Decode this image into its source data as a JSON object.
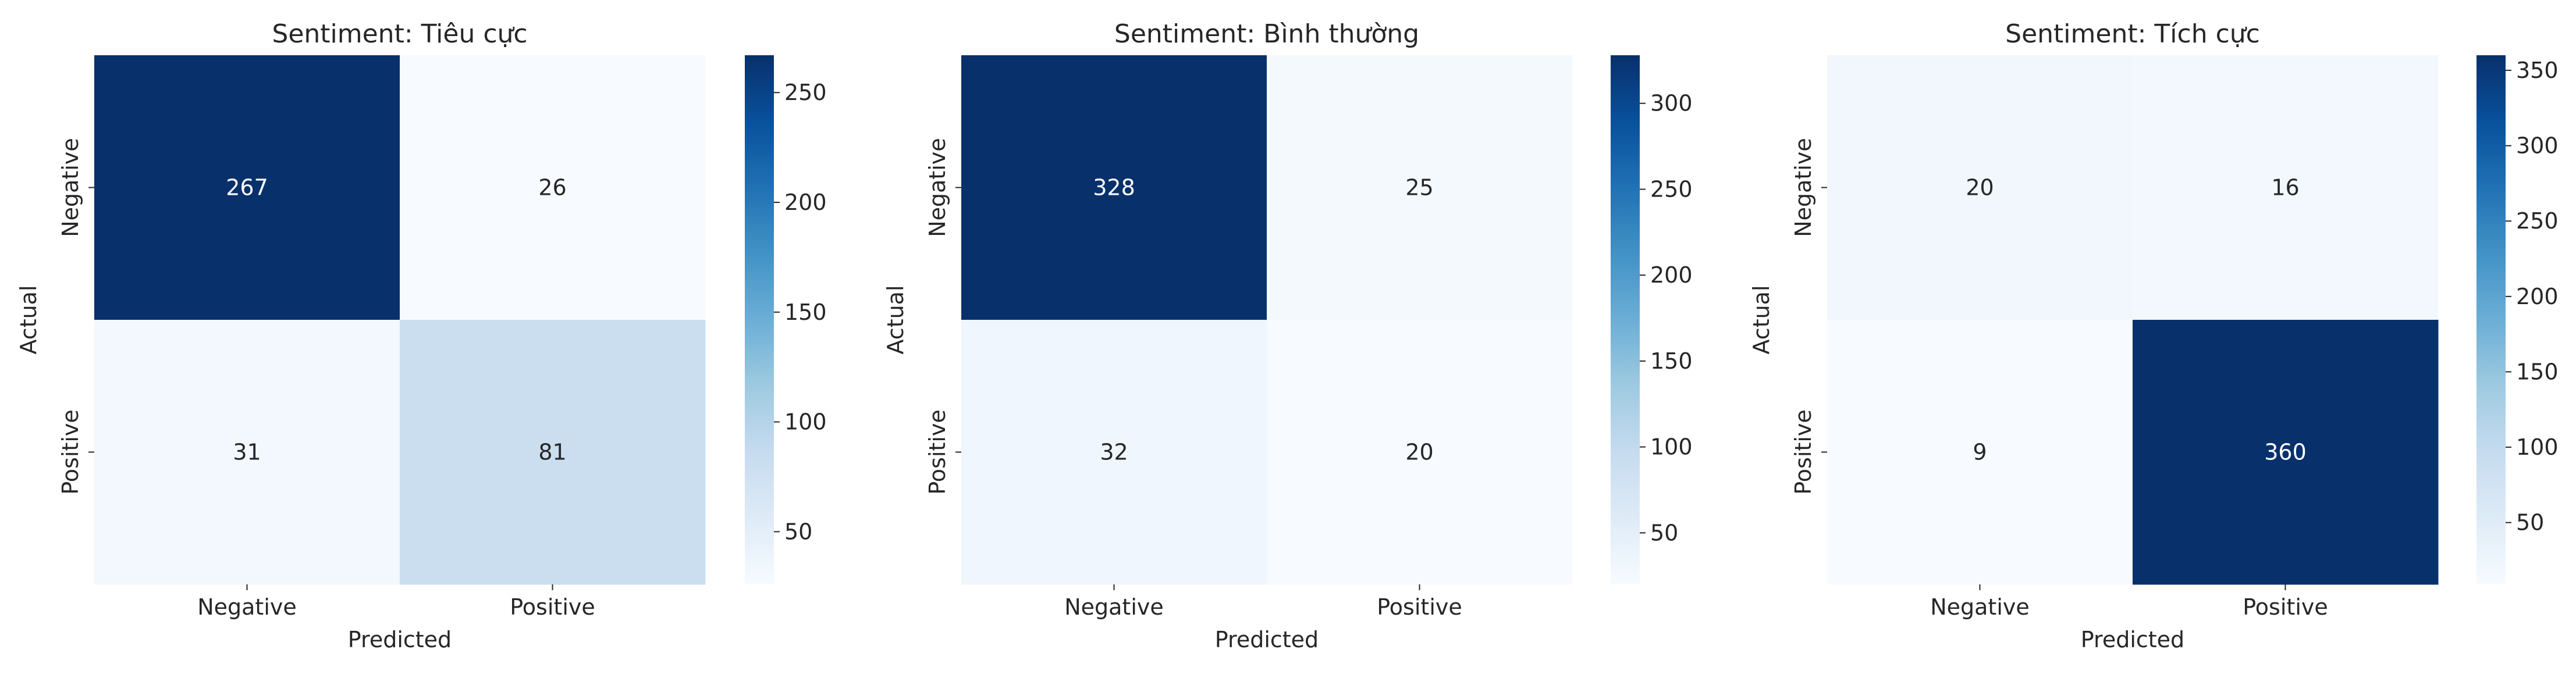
{
  "chart_data": [
    {
      "type": "heatmap",
      "title": "Sentiment: Tiêu cực",
      "xlabel": "Predicted",
      "ylabel": "Actual",
      "x_categories": [
        "Negative",
        "Positive"
      ],
      "y_categories": [
        "Negative",
        "Positive"
      ],
      "values": [
        [
          267,
          26
        ],
        [
          31,
          81
        ]
      ],
      "colormap": "Blues",
      "colorbar": {
        "range": [
          26,
          267
        ],
        "ticks": [
          50,
          100,
          150,
          200,
          250
        ]
      }
    },
    {
      "type": "heatmap",
      "title": "Sentiment: Bình thường",
      "xlabel": "Predicted",
      "ylabel": "Actual",
      "x_categories": [
        "Negative",
        "Positive"
      ],
      "y_categories": [
        "Negative",
        "Positive"
      ],
      "values": [
        [
          328,
          25
        ],
        [
          32,
          20
        ]
      ],
      "colormap": "Blues",
      "colorbar": {
        "range": [
          20,
          328
        ],
        "ticks": [
          50,
          100,
          150,
          200,
          250,
          300
        ]
      }
    },
    {
      "type": "heatmap",
      "title": "Sentiment: Tích cực",
      "xlabel": "Predicted",
      "ylabel": "Actual",
      "x_categories": [
        "Negative",
        "Positive"
      ],
      "y_categories": [
        "Negative",
        "Positive"
      ],
      "values": [
        [
          20,
          16
        ],
        [
          9,
          360
        ]
      ],
      "colormap": "Blues",
      "colorbar": {
        "range": [
          9,
          360
        ],
        "ticks": [
          50,
          100,
          150,
          200,
          250,
          300,
          350
        ]
      }
    }
  ]
}
